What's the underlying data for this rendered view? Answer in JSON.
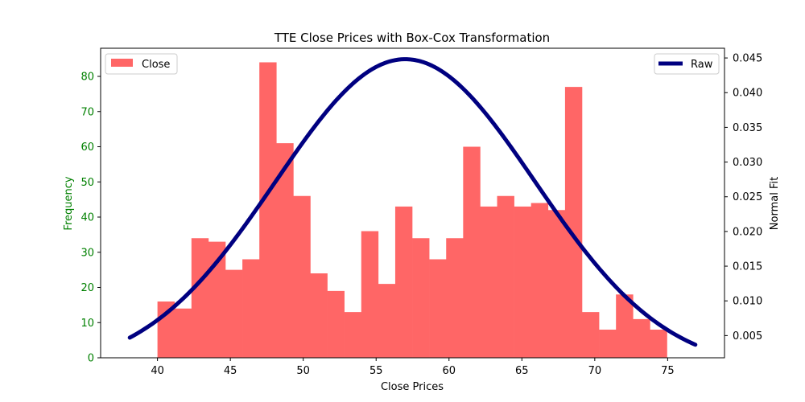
{
  "chart_data": {
    "type": "bar",
    "title": "TTE Close Prices with Box-Cox Transformation",
    "xlabel": "Close Prices",
    "ylabel": "Frequency",
    "y2label": "Normal Fit",
    "xlim": [
      36.1,
      78.9
    ],
    "ylim": [
      0,
      88
    ],
    "y2lim": [
      0.0018,
      0.0464
    ],
    "x_ticks": [
      40,
      45,
      50,
      55,
      60,
      65,
      70,
      75
    ],
    "y_ticks": [
      0,
      10,
      20,
      30,
      40,
      50,
      60,
      70,
      80
    ],
    "y2_ticks": [
      0.005,
      0.01,
      0.015,
      0.02,
      0.025,
      0.03,
      0.035,
      0.04,
      0.045
    ],
    "y2_tick_labels": [
      "0.005",
      "0.010",
      "0.015",
      "0.020",
      "0.025",
      "0.030",
      "0.035",
      "0.040",
      "0.045"
    ],
    "grid": false,
    "bin_start": 40.0,
    "bin_width": 1.165,
    "series": [
      {
        "name": "Close",
        "kind": "histogram",
        "color": "#ff6666",
        "values": [
          16,
          14,
          34,
          33,
          25,
          28,
          84,
          61,
          46,
          24,
          19,
          13,
          36,
          21,
          43,
          34,
          28,
          34,
          60,
          43,
          46,
          43,
          44,
          42,
          77,
          13,
          8,
          18,
          11,
          8
        ],
        "legend_position": "upper-left"
      },
      {
        "name": "Raw",
        "kind": "line",
        "color": "#000080",
        "axis": "right",
        "mean": 57.0,
        "std": 8.9,
        "x_range": [
          38.1,
          76.9
        ],
        "legend_position": "upper-right"
      }
    ],
    "left_axis_color": "#008000"
  }
}
